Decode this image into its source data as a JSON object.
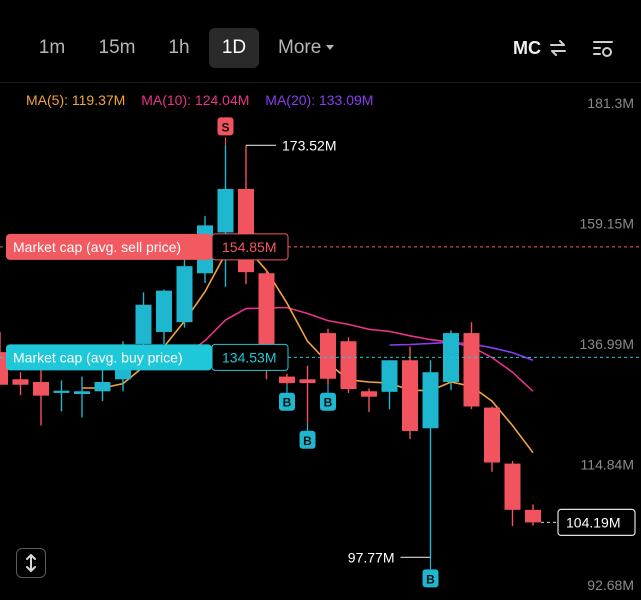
{
  "toolbar": {
    "timeframes": [
      "1m",
      "15m",
      "1h",
      "1D"
    ],
    "active_timeframe": "1D",
    "more_label": "More",
    "mc_label": "MC"
  },
  "indicators": {
    "ma5": "MA(5): 119.37M",
    "ma10": "MA(10): 124.04M",
    "ma20": "MA(20): 133.09M"
  },
  "colors": {
    "up": "#1fb6d0",
    "down": "#f2545f",
    "ma5": "#f2a43c",
    "ma10": "#e8338a",
    "ma20": "#8a3df0",
    "sell_line": "#f25a62",
    "buy_line": "#1fc8d8"
  },
  "chart_data": {
    "type": "candlestick",
    "y_unit": "M",
    "ylim": [
      92.68,
      181.3
    ],
    "y_ticks": [
      "181.3M",
      "159.15M",
      "136.99M",
      "114.84M",
      "92.68M"
    ],
    "y_tick_values": [
      181.3,
      159.15,
      136.99,
      114.84,
      92.68
    ],
    "candles": [
      {
        "o": 135.5,
        "h": 139.2,
        "l": 129.5,
        "c": 129.5
      },
      {
        "o": 130.5,
        "h": 131.8,
        "l": 127.6,
        "c": 129.5
      },
      {
        "o": 130.0,
        "h": 132.5,
        "l": 122.0,
        "c": 127.5
      },
      {
        "o": 128.0,
        "h": 130.3,
        "l": 124.6,
        "c": 128.4
      },
      {
        "o": 127.8,
        "h": 131.0,
        "l": 123.5,
        "c": 128.3
      },
      {
        "o": 128.3,
        "h": 133.8,
        "l": 126.5,
        "c": 130.0
      },
      {
        "o": 130.5,
        "h": 137.5,
        "l": 128.3,
        "c": 133.2
      },
      {
        "o": 137.0,
        "h": 146.5,
        "l": 133.5,
        "c": 144.2
      },
      {
        "o": 139.2,
        "h": 147.0,
        "l": 137.0,
        "c": 146.8
      },
      {
        "o": 141.0,
        "h": 153.0,
        "l": 140.0,
        "c": 151.3
      },
      {
        "o": 150.0,
        "h": 160.5,
        "l": 148.2,
        "c": 158.8
      },
      {
        "o": 157.5,
        "h": 173.5,
        "l": 147.5,
        "c": 165.5
      },
      {
        "o": 165.5,
        "h": 173.52,
        "l": 148.0,
        "c": 150.2
      },
      {
        "o": 150.0,
        "h": 150.5,
        "l": 130.5,
        "c": 132.2
      },
      {
        "o": 131.0,
        "h": 131.5,
        "l": 129.5,
        "c": 129.8
      },
      {
        "o": 130.5,
        "h": 133.0,
        "l": 122.5,
        "c": 129.8
      },
      {
        "o": 139.0,
        "h": 139.8,
        "l": 129.5,
        "c": 130.6
      },
      {
        "o": 137.5,
        "h": 138.2,
        "l": 128.0,
        "c": 128.7
      },
      {
        "o": 128.3,
        "h": 128.8,
        "l": 124.5,
        "c": 127.3
      },
      {
        "o": 128.2,
        "h": 134.0,
        "l": 125.0,
        "c": 134.0
      },
      {
        "o": 134.0,
        "h": 136.5,
        "l": 119.5,
        "c": 121.0
      },
      {
        "o": 121.5,
        "h": 134.0,
        "l": 97.77,
        "c": 131.8
      },
      {
        "o": 130.0,
        "h": 139.5,
        "l": 128.5,
        "c": 139.0
      },
      {
        "o": 139.0,
        "h": 141.0,
        "l": 125.0,
        "c": 125.5
      },
      {
        "o": 125.3,
        "h": 125.5,
        "l": 113.5,
        "c": 115.2
      },
      {
        "o": 115.0,
        "h": 115.5,
        "l": 103.5,
        "c": 106.5
      },
      {
        "o": 106.5,
        "h": 107.5,
        "l": 103.6,
        "c": 104.19
      }
    ],
    "ma5": [
      null,
      null,
      null,
      null,
      128.9,
      128.9,
      129.7,
      132.8,
      136.5,
      141.2,
      146.6,
      153.6,
      154.8,
      150.5,
      144.5,
      137.5,
      133.5,
      130.4,
      130.0,
      129.8,
      128.5,
      128.4,
      130.0,
      129.2,
      126.5,
      122.0,
      117.0
    ],
    "ma10": [
      null,
      null,
      null,
      null,
      null,
      null,
      null,
      null,
      null,
      134.8,
      137.6,
      141.4,
      143.5,
      143.6,
      143.7,
      142.6,
      141.3,
      140.6,
      139.7,
      139.3,
      138.5,
      137.8,
      137.3,
      136.5,
      134.5,
      131.8,
      128.3
    ],
    "ma20": [
      null,
      null,
      null,
      null,
      null,
      null,
      null,
      null,
      null,
      null,
      null,
      null,
      null,
      null,
      null,
      null,
      null,
      null,
      null,
      136.8,
      136.9,
      137.1,
      137.3,
      137.0,
      136.3,
      135.4,
      134.0
    ],
    "markers": [
      {
        "index": 11,
        "type": "S",
        "position": "above"
      },
      {
        "index": 14,
        "type": "B",
        "position": "below"
      },
      {
        "index": 15,
        "type": "B",
        "position": "below"
      },
      {
        "index": 16,
        "type": "B",
        "position": "below"
      },
      {
        "index": 21,
        "type": "B",
        "position": "below"
      }
    ],
    "high_label": "173.52M",
    "low_label": "97.77M",
    "last_price_label": "104.19M",
    "sell_line": {
      "value": 154.85,
      "label": "Market cap (avg. sell price)",
      "value_label": "154.85M"
    },
    "buy_line": {
      "value": 134.53,
      "label": "Market cap (avg. buy price)",
      "value_label": "134.53M"
    }
  }
}
